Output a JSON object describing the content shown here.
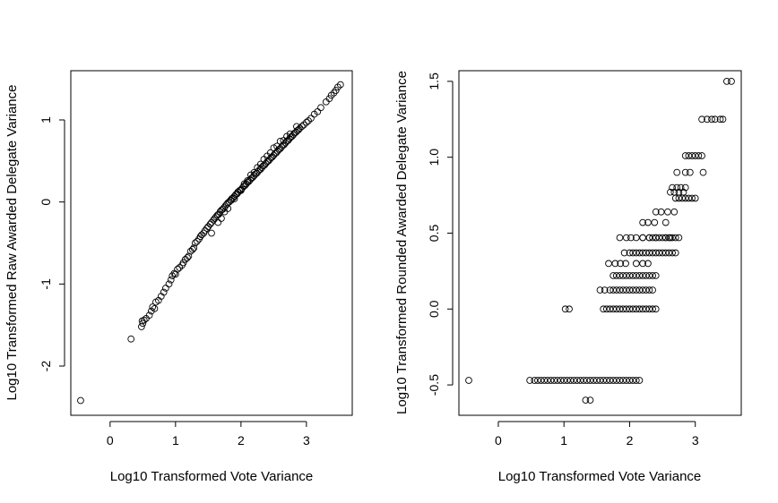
{
  "colors": {
    "background": "#ffffff",
    "foreground": "#000000"
  },
  "chart_data": [
    {
      "type": "scatter",
      "title": "",
      "xlabel": "Log10 Transformed Vote Variance",
      "ylabel": "Log10 Transformed Raw Awarded Delegate Variance",
      "xlim": [
        -0.6,
        3.7
      ],
      "ylim": [
        -2.6,
        1.6
      ],
      "xticks": [
        0,
        1,
        2,
        3
      ],
      "yticks": [
        -2,
        -1,
        0,
        1
      ],
      "xtick_labels": [
        "0",
        "1",
        "2",
        "3"
      ],
      "ytick_labels": [
        "-2",
        "-1",
        "0",
        "1"
      ],
      "grid": false,
      "legend": "none",
      "marker": "open-circle",
      "points": {
        "x": [
          -0.45,
          0.32,
          0.48,
          0.49,
          0.5,
          0.52,
          0.55,
          0.6,
          0.63,
          0.65,
          0.68,
          0.7,
          0.74,
          0.78,
          0.82,
          0.85,
          0.9,
          0.93,
          0.95,
          0.98,
          1.0,
          1.03,
          1.06,
          1.1,
          1.12,
          1.15,
          1.18,
          1.2,
          1.23,
          1.26,
          1.28,
          1.3,
          1.33,
          1.36,
          1.38,
          1.4,
          1.43,
          1.45,
          1.48,
          1.5,
          1.53,
          1.55,
          1.58,
          1.6,
          1.62,
          1.64,
          1.66,
          1.68,
          1.7,
          1.72,
          1.74,
          1.76,
          1.78,
          1.8,
          1.82,
          1.84,
          1.86,
          1.88,
          1.9,
          1.92,
          1.94,
          1.96,
          1.98,
          2.0,
          2.02,
          2.04,
          2.06,
          2.08,
          2.1,
          2.12,
          2.14,
          2.16,
          2.18,
          2.2,
          2.22,
          2.24,
          2.26,
          2.28,
          2.3,
          2.32,
          2.34,
          2.36,
          2.38,
          2.4,
          2.42,
          2.44,
          2.46,
          2.48,
          2.5,
          2.52,
          2.54,
          2.56,
          2.58,
          2.6,
          2.62,
          2.64,
          2.66,
          2.68,
          2.7,
          2.72,
          2.74,
          2.76,
          2.78,
          2.8,
          2.82,
          2.84,
          2.86,
          2.88,
          2.9,
          2.93,
          2.96,
          3.0,
          3.03,
          3.07,
          3.12,
          3.17,
          3.22,
          3.3,
          3.35,
          3.38,
          3.42,
          3.45,
          3.48,
          3.52,
          1.55,
          1.65,
          1.75,
          1.85,
          1.95,
          2.05,
          2.15,
          2.25,
          2.35,
          2.45,
          2.55,
          2.65,
          2.75,
          2.85,
          1.7,
          1.8,
          1.9,
          2.0,
          2.1,
          2.2,
          2.3,
          2.4,
          2.5,
          2.6,
          2.7
        ],
        "y": [
          -2.42,
          -1.67,
          -1.52,
          -1.45,
          -1.48,
          -1.44,
          -1.42,
          -1.38,
          -1.33,
          -1.28,
          -1.3,
          -1.22,
          -1.2,
          -1.15,
          -1.1,
          -1.05,
          -1.0,
          -0.95,
          -0.9,
          -0.87,
          -0.88,
          -0.82,
          -0.8,
          -0.77,
          -0.74,
          -0.7,
          -0.68,
          -0.66,
          -0.6,
          -0.58,
          -0.56,
          -0.5,
          -0.48,
          -0.45,
          -0.42,
          -0.4,
          -0.38,
          -0.35,
          -0.32,
          -0.3,
          -0.27,
          -0.25,
          -0.22,
          -0.2,
          -0.18,
          -0.16,
          -0.15,
          -0.12,
          -0.1,
          -0.09,
          -0.07,
          -0.05,
          -0.03,
          -0.01,
          0.0,
          0.02,
          0.04,
          0.05,
          0.07,
          0.09,
          0.1,
          0.12,
          0.14,
          0.15,
          0.17,
          0.19,
          0.2,
          0.22,
          0.24,
          0.25,
          0.27,
          0.29,
          0.3,
          0.32,
          0.34,
          0.35,
          0.37,
          0.39,
          0.4,
          0.42,
          0.44,
          0.45,
          0.47,
          0.49,
          0.5,
          0.52,
          0.54,
          0.55,
          0.57,
          0.59,
          0.6,
          0.62,
          0.64,
          0.65,
          0.67,
          0.69,
          0.7,
          0.72,
          0.74,
          0.75,
          0.77,
          0.79,
          0.8,
          0.82,
          0.84,
          0.85,
          0.87,
          0.88,
          0.9,
          0.92,
          0.94,
          0.97,
          0.99,
          1.02,
          1.07,
          1.1,
          1.15,
          1.22,
          1.26,
          1.3,
          1.33,
          1.36,
          1.4,
          1.43,
          -0.38,
          -0.25,
          -0.12,
          0.02,
          0.12,
          0.22,
          0.33,
          0.42,
          0.52,
          0.6,
          0.68,
          0.75,
          0.83,
          0.92,
          -0.2,
          -0.08,
          0.04,
          0.14,
          0.26,
          0.36,
          0.46,
          0.56,
          0.66,
          0.74,
          0.8
        ]
      }
    },
    {
      "type": "scatter",
      "title": "",
      "xlabel": "Log10 Transformed Vote Variance",
      "ylabel": "Log10 Transformed Rounded Awarded Delegate Variance",
      "xlim": [
        -0.6,
        3.7
      ],
      "ylim": [
        -0.7,
        1.57
      ],
      "xticks": [
        0,
        1,
        2,
        3
      ],
      "yticks": [
        -0.5,
        0.0,
        0.5,
        1.0,
        1.5
      ],
      "xtick_labels": [
        "0",
        "1",
        "2",
        "3"
      ],
      "ytick_labels": [
        "-0.5",
        "0.0",
        "0.5",
        "1.0",
        "1.5"
      ],
      "grid": false,
      "legend": "none",
      "marker": "open-circle",
      "points": {
        "x": [
          -0.45,
          0.48,
          0.55,
          0.6,
          0.65,
          0.7,
          0.75,
          0.8,
          0.85,
          0.9,
          0.95,
          1.0,
          1.05,
          1.1,
          1.15,
          1.2,
          1.25,
          1.3,
          1.35,
          1.4,
          1.45,
          1.5,
          1.55,
          1.6,
          1.65,
          1.7,
          1.75,
          1.8,
          1.85,
          1.9,
          1.95,
          2.0,
          2.05,
          2.1,
          2.15,
          1.33,
          1.4,
          1.02,
          1.08,
          1.6,
          1.65,
          1.7,
          1.75,
          1.8,
          1.85,
          1.9,
          1.95,
          2.0,
          2.05,
          2.1,
          2.15,
          2.2,
          2.25,
          2.3,
          2.35,
          2.4,
          1.55,
          1.62,
          1.7,
          1.75,
          1.8,
          1.85,
          1.9,
          1.95,
          2.0,
          2.05,
          2.1,
          2.15,
          2.2,
          2.25,
          2.3,
          2.35,
          1.75,
          1.8,
          1.85,
          1.9,
          1.95,
          2.0,
          2.05,
          2.1,
          2.15,
          2.2,
          2.25,
          2.3,
          2.35,
          2.4,
          1.68,
          1.78,
          1.86,
          1.94,
          2.1,
          2.2,
          2.28,
          1.92,
          2.0,
          2.05,
          2.1,
          2.15,
          2.2,
          2.25,
          2.3,
          2.35,
          2.4,
          2.45,
          2.5,
          2.55,
          2.6,
          2.65,
          2.7,
          1.85,
          1.95,
          2.02,
          2.2,
          2.3,
          2.4,
          2.55,
          2.62,
          2.1,
          2.2,
          2.3,
          2.35,
          2.4,
          2.45,
          2.5,
          2.55,
          2.6,
          2.65,
          2.7,
          2.75,
          2.2,
          2.28,
          2.38,
          2.55,
          2.4,
          2.48,
          2.58,
          2.68,
          2.7,
          2.75,
          2.8,
          2.85,
          2.9,
          2.95,
          3.0,
          2.62,
          2.68,
          2.75,
          2.82,
          2.65,
          2.72,
          2.78,
          2.85,
          2.72,
          2.85,
          2.92,
          3.12,
          2.85,
          2.9,
          2.95,
          3.0,
          3.05,
          3.1,
          3.1,
          3.18,
          3.25,
          3.3,
          3.38,
          3.42,
          3.48,
          3.55
        ],
        "y": [
          -0.47,
          -0.47,
          -0.47,
          -0.47,
          -0.47,
          -0.47,
          -0.47,
          -0.47,
          -0.47,
          -0.47,
          -0.47,
          -0.47,
          -0.47,
          -0.47,
          -0.47,
          -0.47,
          -0.47,
          -0.47,
          -0.47,
          -0.47,
          -0.47,
          -0.47,
          -0.47,
          -0.47,
          -0.47,
          -0.47,
          -0.47,
          -0.47,
          -0.47,
          -0.47,
          -0.47,
          -0.47,
          -0.47,
          -0.47,
          -0.47,
          -0.6,
          -0.6,
          0.0,
          0.0,
          0.0,
          0.0,
          0.0,
          0.0,
          0.0,
          0.0,
          0.0,
          0.0,
          0.0,
          0.0,
          0.0,
          0.0,
          0.0,
          0.0,
          0.0,
          0.0,
          0.0,
          0.125,
          0.125,
          0.125,
          0.125,
          0.125,
          0.125,
          0.125,
          0.125,
          0.125,
          0.125,
          0.125,
          0.125,
          0.125,
          0.125,
          0.125,
          0.125,
          0.22,
          0.22,
          0.22,
          0.22,
          0.22,
          0.22,
          0.22,
          0.22,
          0.22,
          0.22,
          0.22,
          0.22,
          0.22,
          0.22,
          0.3,
          0.3,
          0.3,
          0.3,
          0.3,
          0.3,
          0.3,
          0.37,
          0.37,
          0.37,
          0.37,
          0.37,
          0.37,
          0.37,
          0.37,
          0.37,
          0.37,
          0.37,
          0.37,
          0.37,
          0.37,
          0.37,
          0.37,
          0.47,
          0.47,
          0.47,
          0.47,
          0.47,
          0.47,
          0.47,
          0.47,
          0.47,
          0.47,
          0.47,
          0.47,
          0.47,
          0.47,
          0.47,
          0.47,
          0.47,
          0.47,
          0.47,
          0.47,
          0.57,
          0.57,
          0.57,
          0.57,
          0.64,
          0.64,
          0.64,
          0.64,
          0.73,
          0.73,
          0.73,
          0.73,
          0.73,
          0.73,
          0.73,
          0.77,
          0.77,
          0.77,
          0.77,
          0.8,
          0.8,
          0.8,
          0.8,
          0.9,
          0.9,
          0.9,
          0.9,
          1.01,
          1.01,
          1.01,
          1.01,
          1.01,
          1.01,
          1.25,
          1.25,
          1.25,
          1.25,
          1.25,
          1.25,
          1.5,
          1.5
        ]
      }
    }
  ]
}
